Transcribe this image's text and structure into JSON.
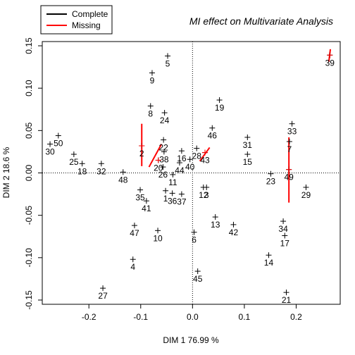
{
  "chart_data": {
    "type": "scatter",
    "title": "MI effect on Multivariate Analysis",
    "xlabel": "DIM 1 76.99 %",
    "ylabel": "DIM 2 18.6 %",
    "xlim": [
      -0.29,
      0.285
    ],
    "ylim": [
      -0.155,
      0.155
    ],
    "x_ticks": [
      -0.2,
      -0.1,
      0.0,
      0.1,
      0.2
    ],
    "x_tick_labels": [
      "-0.2",
      "-0.1",
      "0.0",
      "0.1",
      "0.2"
    ],
    "y_ticks": [
      -0.15,
      -0.1,
      -0.05,
      0.0,
      0.05,
      0.1,
      0.15
    ],
    "y_tick_labels": [
      "-0.15",
      "-0.10",
      "-0.05",
      "0.00",
      "0.05",
      "0.10",
      "0.15"
    ],
    "reference_lines": {
      "x": 0,
      "y": 0,
      "style": "dotted"
    },
    "legend": {
      "position": "top-left",
      "entries": [
        {
          "label": "Complete",
          "color": "#000000"
        },
        {
          "label": "Missing",
          "color": "#ff0000"
        }
      ]
    },
    "points": [
      {
        "id": "1",
        "x": -0.052,
        "y": -0.021
      },
      {
        "id": "2",
        "x": -0.098,
        "y": 0.032
      },
      {
        "id": "3",
        "x": 0.027,
        "y": -0.017
      },
      {
        "id": "4",
        "x": -0.115,
        "y": -0.102
      },
      {
        "id": "5",
        "x": -0.048,
        "y": 0.138
      },
      {
        "id": "6",
        "x": 0.003,
        "y": -0.07
      },
      {
        "id": "7",
        "x": 0.187,
        "y": 0.037
      },
      {
        "id": "8",
        "x": -0.081,
        "y": 0.079
      },
      {
        "id": "9",
        "x": -0.078,
        "y": 0.118
      },
      {
        "id": "10",
        "x": -0.067,
        "y": -0.068
      },
      {
        "id": "11",
        "x": -0.038,
        "y": -0.002
      },
      {
        "id": "12",
        "x": 0.021,
        "y": -0.017
      },
      {
        "id": "13",
        "x": 0.044,
        "y": -0.052
      },
      {
        "id": "14",
        "x": 0.147,
        "y": -0.097
      },
      {
        "id": "15",
        "x": 0.106,
        "y": 0.022
      },
      {
        "id": "16",
        "x": -0.021,
        "y": 0.026
      },
      {
        "id": "17",
        "x": 0.178,
        "y": -0.074
      },
      {
        "id": "18",
        "x": -0.213,
        "y": 0.011
      },
      {
        "id": "19",
        "x": 0.052,
        "y": 0.086
      },
      {
        "id": "20",
        "x": -0.066,
        "y": 0.015
      },
      {
        "id": "21",
        "x": 0.181,
        "y": -0.141
      },
      {
        "id": "22",
        "x": -0.056,
        "y": 0.039
      },
      {
        "id": "23",
        "x": 0.151,
        "y": -0.001
      },
      {
        "id": "24",
        "x": -0.054,
        "y": 0.071
      },
      {
        "id": "25",
        "x": -0.229,
        "y": 0.022
      },
      {
        "id": "26",
        "x": -0.057,
        "y": 0.007
      },
      {
        "id": "27",
        "x": -0.173,
        "y": -0.136
      },
      {
        "id": "28",
        "x": 0.008,
        "y": 0.029
      },
      {
        "id": "29",
        "x": 0.219,
        "y": -0.017
      },
      {
        "id": "30",
        "x": -0.275,
        "y": 0.034
      },
      {
        "id": "31",
        "x": 0.106,
        "y": 0.042
      },
      {
        "id": "32",
        "x": -0.176,
        "y": 0.011
      },
      {
        "id": "33",
        "x": 0.192,
        "y": 0.058
      },
      {
        "id": "34",
        "x": 0.175,
        "y": -0.057
      },
      {
        "id": "35",
        "x": -0.101,
        "y": -0.02
      },
      {
        "id": "36",
        "x": -0.039,
        "y": -0.024
      },
      {
        "id": "37",
        "x": -0.021,
        "y": -0.025
      },
      {
        "id": "38",
        "x": -0.055,
        "y": 0.025
      },
      {
        "id": "39",
        "x": 0.265,
        "y": 0.139
      },
      {
        "id": "40",
        "x": -0.005,
        "y": 0.016
      },
      {
        "id": "41",
        "x": -0.089,
        "y": -0.033
      },
      {
        "id": "42",
        "x": 0.079,
        "y": -0.061
      },
      {
        "id": "43",
        "x": 0.024,
        "y": 0.024
      },
      {
        "id": "44",
        "x": -0.025,
        "y": 0.012
      },
      {
        "id": "45",
        "x": 0.01,
        "y": -0.116
      },
      {
        "id": "46",
        "x": 0.038,
        "y": 0.053
      },
      {
        "id": "47",
        "x": -0.112,
        "y": -0.062
      },
      {
        "id": "48",
        "x": -0.134,
        "y": 0.001
      },
      {
        "id": "49",
        "x": 0.186,
        "y": 0.004
      },
      {
        "id": "50",
        "x": -0.259,
        "y": 0.044
      }
    ],
    "missing_spread": [
      {
        "id": "2",
        "x1": -0.098,
        "y1": 0.058,
        "x2": -0.098,
        "y2": 0.008
      },
      {
        "id": "20",
        "x1": -0.084,
        "y1": 0.007,
        "x2": -0.06,
        "y2": 0.034
      },
      {
        "id": "43",
        "x1": 0.014,
        "y1": 0.014,
        "x2": 0.033,
        "y2": 0.03
      },
      {
        "id": "49",
        "x1": 0.186,
        "y1": 0.042,
        "x2": 0.186,
        "y2": -0.035
      },
      {
        "id": "39",
        "x1": 0.263,
        "y1": 0.131,
        "x2": 0.266,
        "y2": 0.146
      }
    ]
  }
}
